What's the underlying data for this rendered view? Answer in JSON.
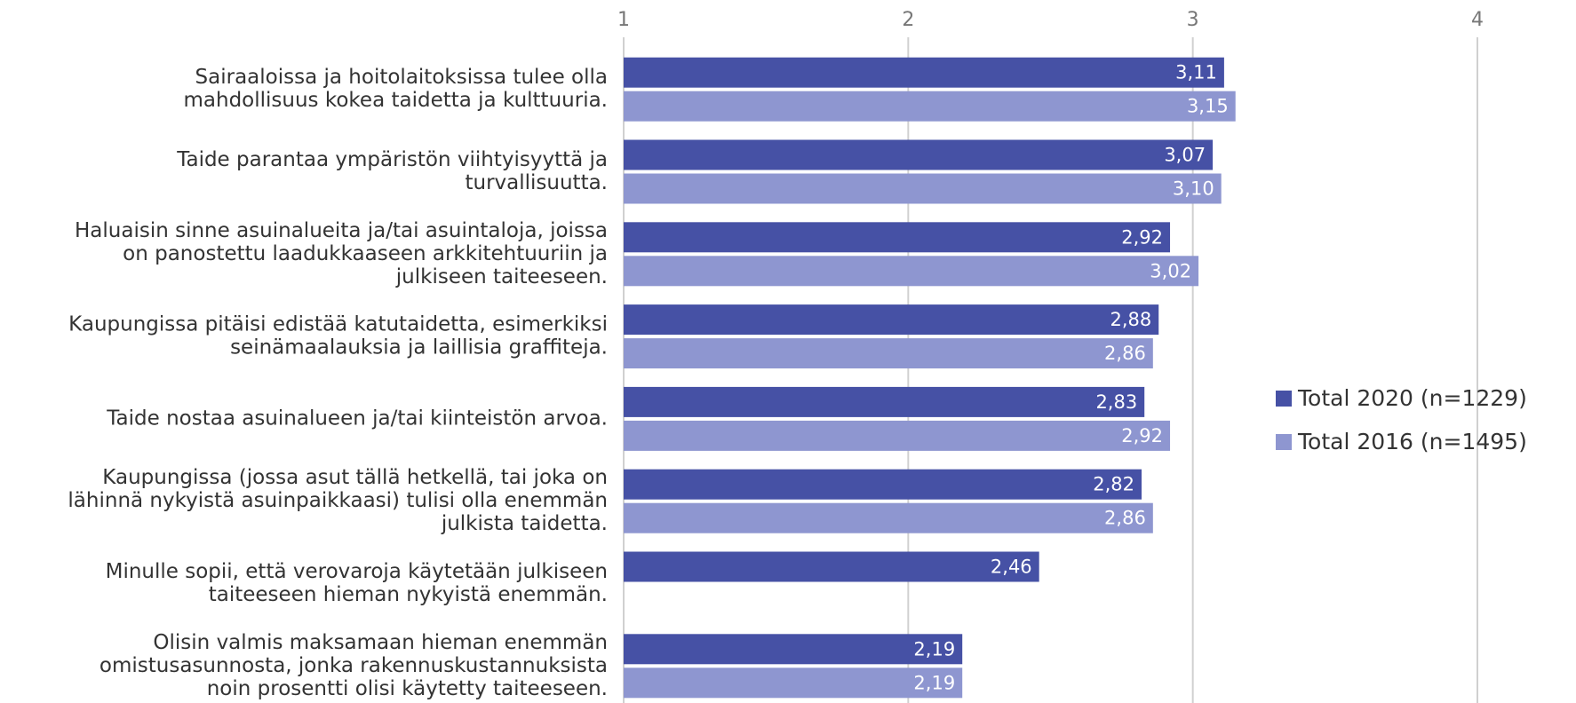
{
  "chart_data": {
    "type": "hbar",
    "categories": [
      [
        "Sairaaloissa ja hoitolaitoksissa tulee olla",
        "mahdollisuus kokea taidetta ja kulttuuria."
      ],
      [
        "Taide parantaa ympäristön viihtyisyyttä ja",
        "turvallisuutta."
      ],
      [
        "Haluaisin sinne asuinalueita ja/tai asuintaloja, joissa",
        "on panostettu laadukkaaseen arkkitehtuuriin ja",
        "julkiseen taiteeseen."
      ],
      [
        "Kaupungissa pitäisi edistää katutaidetta, esimerkiksi",
        "seinämaalauksia ja laillisia graffiteja."
      ],
      [
        "Taide nostaa asuinalueen ja/tai kiinteistön arvoa."
      ],
      [
        "Kaupungissa (jossa asut tällä hetkellä, tai joka on",
        "lähinnä nykyistä asuinpaikkaasi) tulisi olla enemmän",
        "julkista taidetta."
      ],
      [
        "Minulle sopii, että verovaroja käytetään julkiseen",
        "taiteeseen hieman nykyistä enemmän."
      ],
      [
        "Olisin valmis maksamaan hieman enemmän",
        "omistusasunnosta, jonka rakennuskustannuksista",
        "noin prosentti olisi käytetty taiteeseen."
      ]
    ],
    "series": [
      {
        "name": "Total 2020 (n=1229)",
        "color": "#4651a5",
        "values": [
          3.11,
          3.07,
          2.92,
          2.88,
          2.83,
          2.82,
          2.46,
          2.19
        ],
        "value_labels": [
          "3,11",
          "3,07",
          "2,92",
          "2,88",
          "2,83",
          "2,82",
          "2,46",
          "2,19"
        ]
      },
      {
        "name": "Total 2016 (n=1495)",
        "color": "#8e96d0",
        "values": [
          3.15,
          3.1,
          3.02,
          2.86,
          2.92,
          2.86,
          null,
          2.19
        ],
        "value_labels": [
          "3,15",
          "3,10",
          "3,02",
          "2,86",
          "2,92",
          "2,86",
          null,
          "2,19"
        ]
      }
    ],
    "xlim": [
      1,
      4
    ],
    "xticks": [
      1,
      2,
      3,
      4
    ],
    "grid": true,
    "legend": "right"
  }
}
